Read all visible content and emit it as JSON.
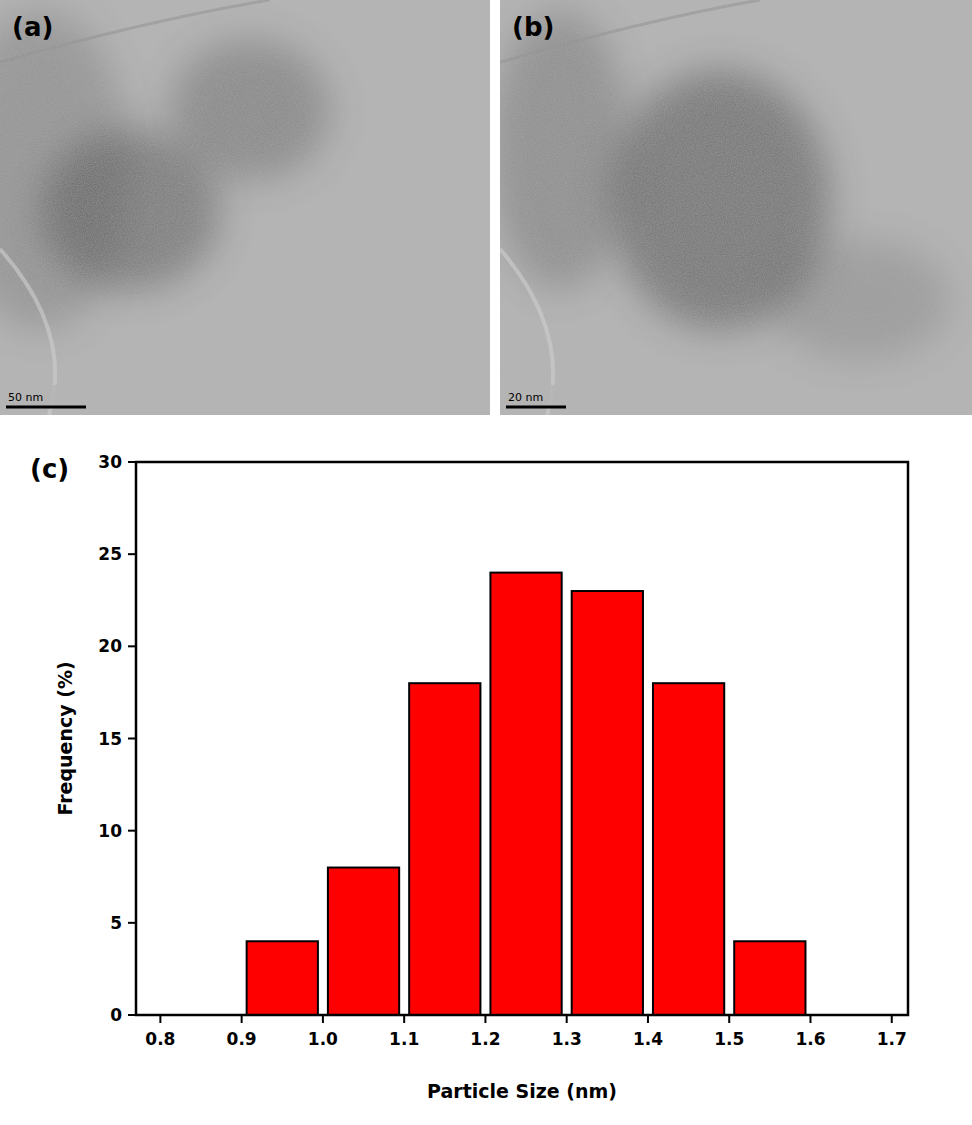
{
  "images": [
    {
      "label": "(a)",
      "scale_bar": "50 nm"
    },
    {
      "label": "(b)",
      "scale_bar": "20 nm"
    }
  ],
  "chart_data": {
    "type": "histogram",
    "annotations": [
      "(c)"
    ],
    "x_label": "Particle Size (nm)",
    "y_label": "Frequency (%)",
    "bins": [
      0.9,
      1.0,
      1.1,
      1.2,
      1.3,
      1.4,
      1.5,
      1.6
    ],
    "values": [
      4,
      8,
      18,
      24,
      23,
      18,
      4
    ],
    "color": "#ff0000",
    "xlim": [
      0.77,
      1.72
    ],
    "xticks": [
      0.8,
      0.9,
      {
        "value": 1,
        "label": "1.0"
      },
      1.1,
      1.2,
      1.3,
      1.4,
      1.5,
      1.6,
      1.7
    ],
    "ylim": [
      0,
      30
    ],
    "yticks": [
      0,
      5,
      10,
      15,
      20,
      25,
      30
    ]
  }
}
